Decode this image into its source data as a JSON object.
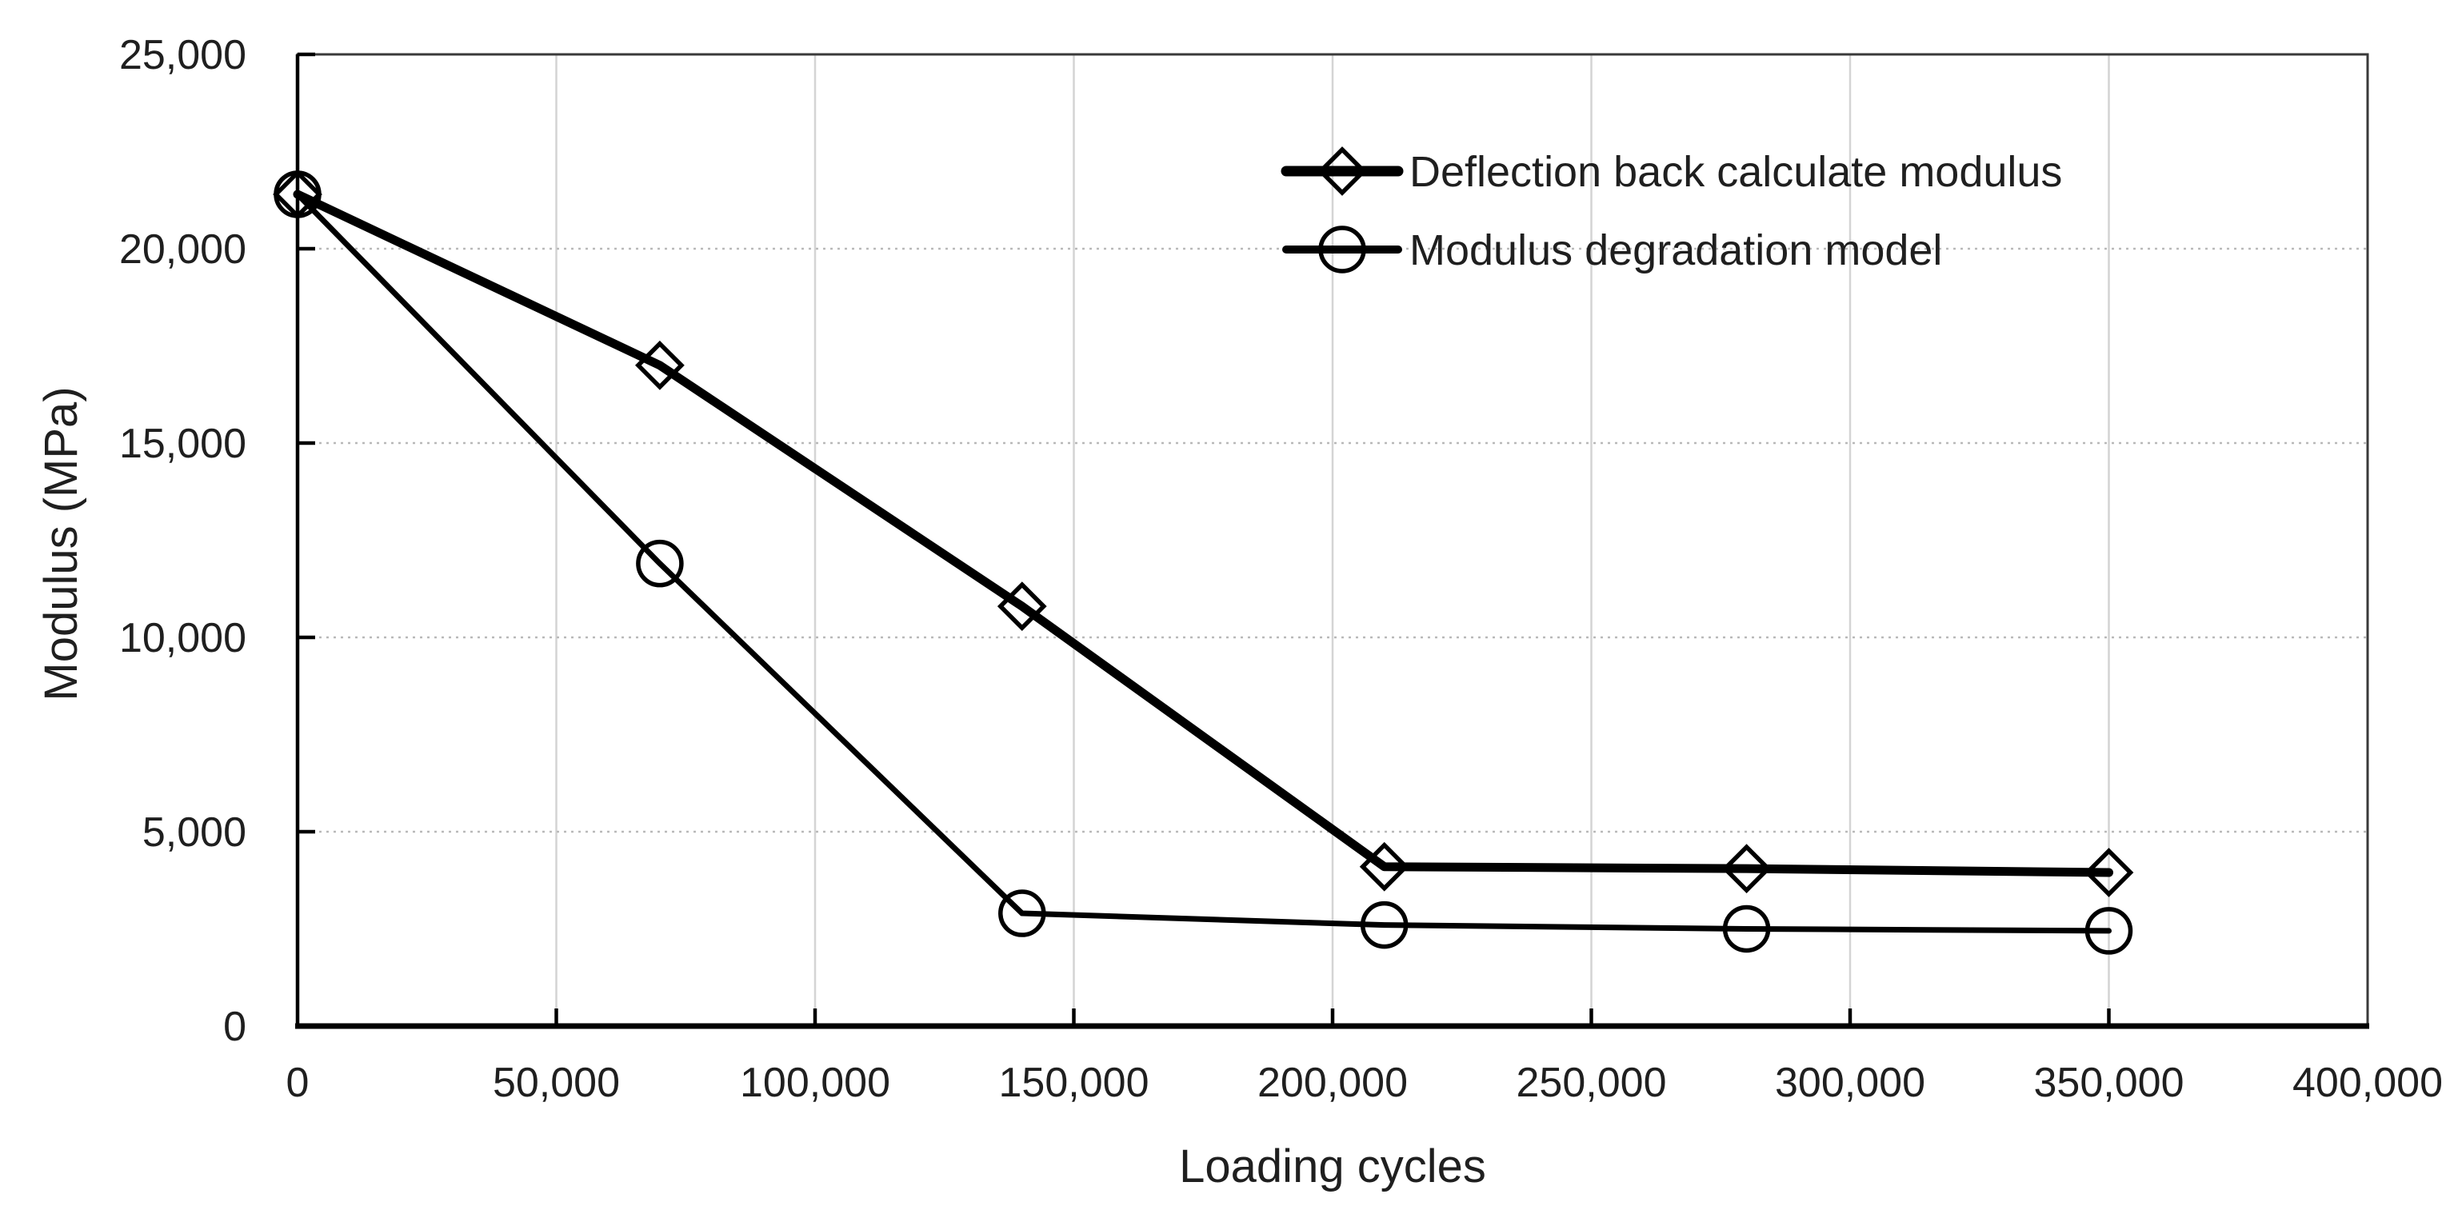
{
  "chart_data": {
    "type": "line",
    "title": "",
    "xlabel": "Loading cycles",
    "ylabel": "Modulus (MPa)",
    "xlim": [
      0,
      400000
    ],
    "ylim": [
      0,
      25000
    ],
    "x_ticks": [
      0,
      50000,
      100000,
      150000,
      200000,
      250000,
      300000,
      350000,
      400000
    ],
    "x_tick_labels": [
      "0",
      "50,000",
      "100,000",
      "150,000",
      "200,000",
      "250,000",
      "300,000",
      "350,000",
      "400,000"
    ],
    "y_ticks": [
      0,
      5000,
      10000,
      15000,
      20000,
      25000
    ],
    "y_tick_labels": [
      "0",
      "5,000",
      "10,000",
      "15,000",
      "20,000",
      "25,000"
    ],
    "grid": {
      "horizontal": true,
      "vertical": true,
      "style": "light-gray dashed"
    },
    "legend_position": "inside top-right",
    "x": [
      0,
      70000,
      140000,
      210000,
      280000,
      350000
    ],
    "series": [
      {
        "name": "Deflection back calculate modulus",
        "marker": "diamond",
        "line": "thick",
        "values": [
          21400,
          17000,
          10800,
          4100,
          4050,
          3950
        ]
      },
      {
        "name": "Modulus degradation model",
        "marker": "circle",
        "line": "medium",
        "values": [
          21400,
          11900,
          2900,
          2600,
          2500,
          2450
        ]
      }
    ]
  },
  "colors": {
    "series": "#000000",
    "grid_horizontal": "#b9b9b9",
    "grid_vertical": "#d4d4d4",
    "axis": "#000000",
    "border": "#3a3a3a",
    "text": "#1f1f1f",
    "background": "#ffffff"
  }
}
